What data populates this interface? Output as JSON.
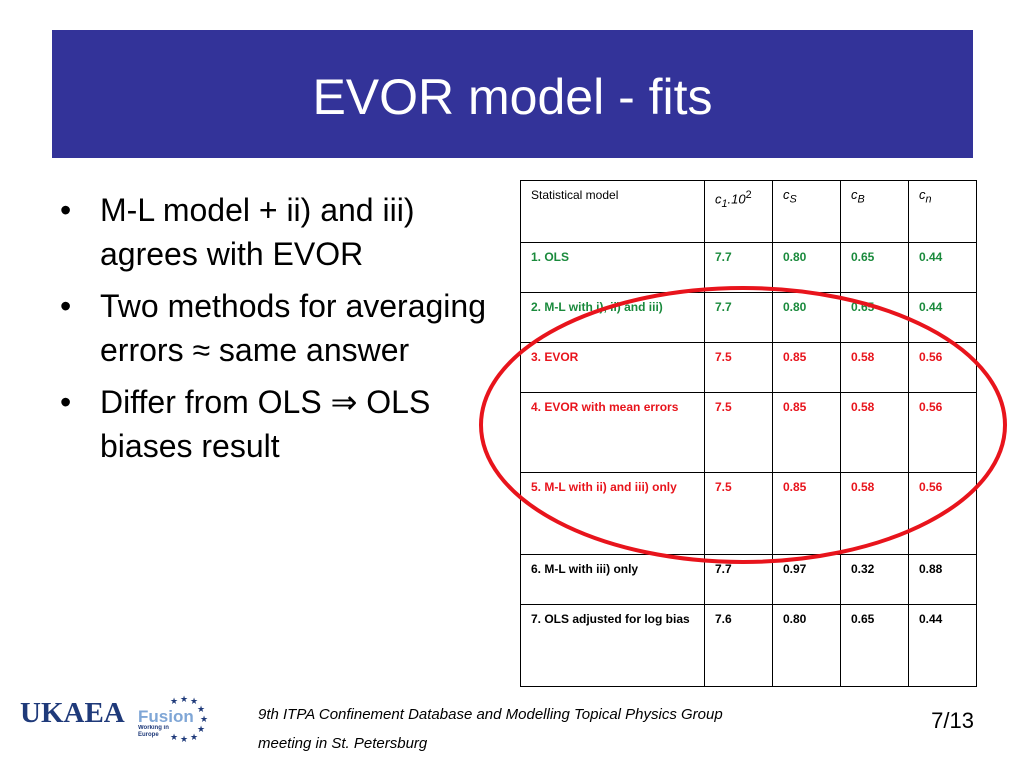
{
  "header": {
    "title": "EVOR model - fits"
  },
  "bullets": [
    "M-L model + ii) and iii) agrees with EVOR",
    "Two methods for averaging errors ≈ same answer",
    "Differ from OLS ⇒ OLS biases result"
  ],
  "table": {
    "header": [
      {
        "base": "Statistical model"
      },
      {
        "base": "c",
        "sub": "1",
        "rest": ".10",
        "sup": "2"
      },
      {
        "base": "c",
        "sub": "S"
      },
      {
        "base": "c",
        "sub": "B"
      },
      {
        "base": "c",
        "sub": "n"
      }
    ],
    "rows": [
      {
        "color": "#1a8a3c",
        "cells": [
          "1. OLS",
          "7.7",
          "0.80",
          "0.65",
          "0.44"
        ]
      },
      {
        "color": "#1a8a3c",
        "cells": [
          "2. M-L with i), ii) and iii)",
          "7.7",
          "0.80",
          "0.65",
          "0.44"
        ]
      },
      {
        "color": "#e8141c",
        "cells": [
          "3. EVOR",
          "7.5",
          "0.85",
          "0.58",
          "0.56"
        ]
      },
      {
        "color": "#e8141c",
        "cells": [
          "4. EVOR with mean errors",
          "7.5",
          "0.85",
          "0.58",
          "0.56"
        ]
      },
      {
        "color": "#e8141c",
        "cells": [
          "5. M-L with ii) and iii) only",
          "7.5",
          "0.85",
          "0.58",
          "0.56"
        ]
      },
      {
        "color": "#000000",
        "cells": [
          "6. M-L with iii) only",
          "7.7",
          "0.97",
          "0.32",
          "0.88"
        ]
      },
      {
        "color": "#000000",
        "cells": [
          "7. OLS adjusted for log bias",
          "7.6",
          "0.80",
          "0.65",
          "0.44"
        ]
      }
    ]
  },
  "logo": {
    "name": "UKAEA",
    "fusion": "Fusion",
    "tagline": "Working in Europe"
  },
  "footer": {
    "lines": [
      "9th ITPA Confinement Database and Modelling Topical Physics Group",
      "meeting in St. Petersburg"
    ],
    "page": "7/13"
  }
}
